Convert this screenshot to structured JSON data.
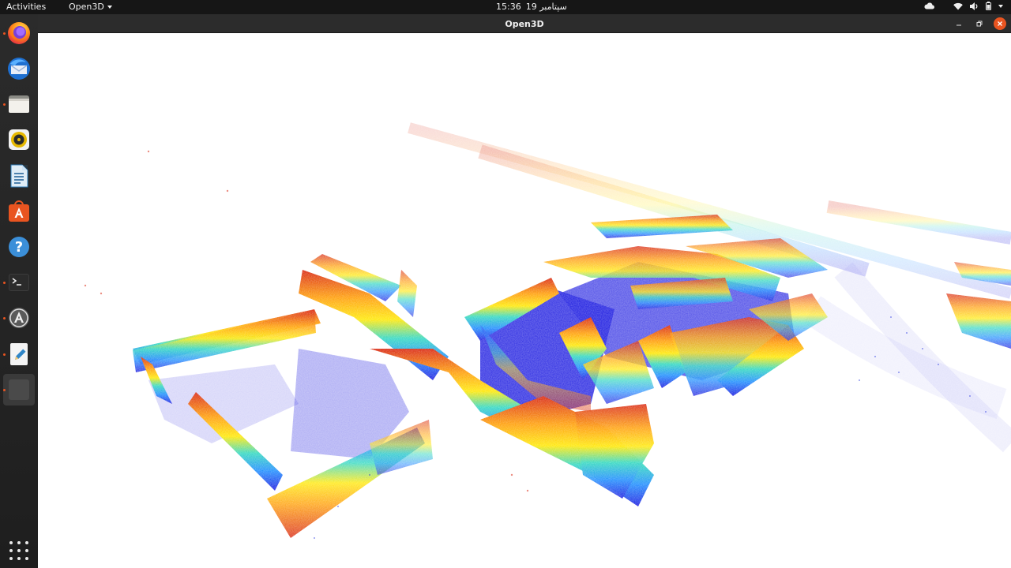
{
  "top_bar": {
    "activities": "Activities",
    "app_menu": "Open3D",
    "time": "15:36",
    "date": "19 سپتامبر"
  },
  "dock": {
    "items": [
      {
        "name": "firefox",
        "running": true
      },
      {
        "name": "thunderbird",
        "running": false
      },
      {
        "name": "files",
        "running": true
      },
      {
        "name": "rhythmbox",
        "running": false
      },
      {
        "name": "libreoffice-writer",
        "running": false
      },
      {
        "name": "app-center",
        "running": false
      },
      {
        "name": "help",
        "running": false
      },
      {
        "name": "terminal",
        "running": true
      },
      {
        "name": "software-updater",
        "running": true
      },
      {
        "name": "text-editor",
        "running": true
      },
      {
        "name": "open3d-window",
        "running": true
      }
    ]
  },
  "window": {
    "title": "Open3D"
  },
  "colors": {
    "accent": "#e95420",
    "panel": "#161616",
    "dock": "#2a2a2a",
    "titlebar": "#2c2c2c"
  }
}
